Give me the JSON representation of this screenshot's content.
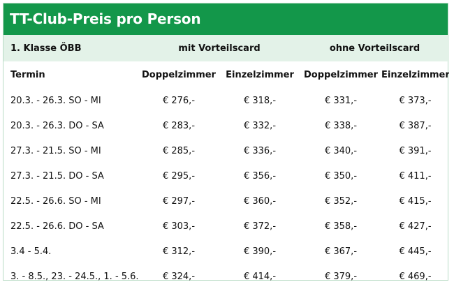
{
  "title": "TT-Club-Preis pro Person",
  "group_row": {
    "class_label": "1. Klasse ÖBB",
    "with_card": "mit Vorteilscard",
    "without_card": "ohne Vorteilscard"
  },
  "header_row": {
    "termin": "Termin",
    "doppel_1": "Doppelzimmer",
    "einzel_1": "Einzelzimmer",
    "doppel_2": "Doppelzimmer",
    "einzel_2": "Einzelzimmer"
  },
  "rows": [
    {
      "termin": "20.3. - 26.3. SO - MI",
      "d1": "€ 276,-",
      "e1": "€ 318,-",
      "d2": "€ 331,-",
      "e2": "€ 373,-"
    },
    {
      "termin": "20.3. - 26.3. DO - SA",
      "d1": "€ 283,-",
      "e1": "€ 332,-",
      "d2": "€ 338,-",
      "e2": "€ 387,-"
    },
    {
      "termin": "27.3. - 21.5. SO - MI",
      "d1": "€ 285,-",
      "e1": "€ 336,-",
      "d2": "€ 340,-",
      "e2": "€ 391,-"
    },
    {
      "termin": "27.3. - 21.5. DO - SA",
      "d1": "€ 295,-",
      "e1": "€ 356,-",
      "d2": "€ 350,-",
      "e2": "€ 411,-"
    },
    {
      "termin": "22.5. - 26.6. SO - MI",
      "d1": "€ 297,-",
      "e1": "€ 360,-",
      "d2": "€ 352,-",
      "e2": "€ 415,-"
    },
    {
      "termin": "22.5. - 26.6. DO - SA",
      "d1": "€ 303,-",
      "e1": "€ 372,-",
      "d2": "€ 358,-",
      "e2": "€ 427,-"
    },
    {
      "termin": "3.4 - 5.4.",
      "d1": "€ 312,-",
      "e1": "€ 390,-",
      "d2": "€ 367,-",
      "e2": "€ 445,-"
    },
    {
      "termin": "3. - 8.5., 23. - 24.5., 1. - 5.6.",
      "d1": "€ 324,-",
      "e1": "€ 414,-",
      "d2": "€ 379,-",
      "e2": "€ 469,-"
    }
  ]
}
